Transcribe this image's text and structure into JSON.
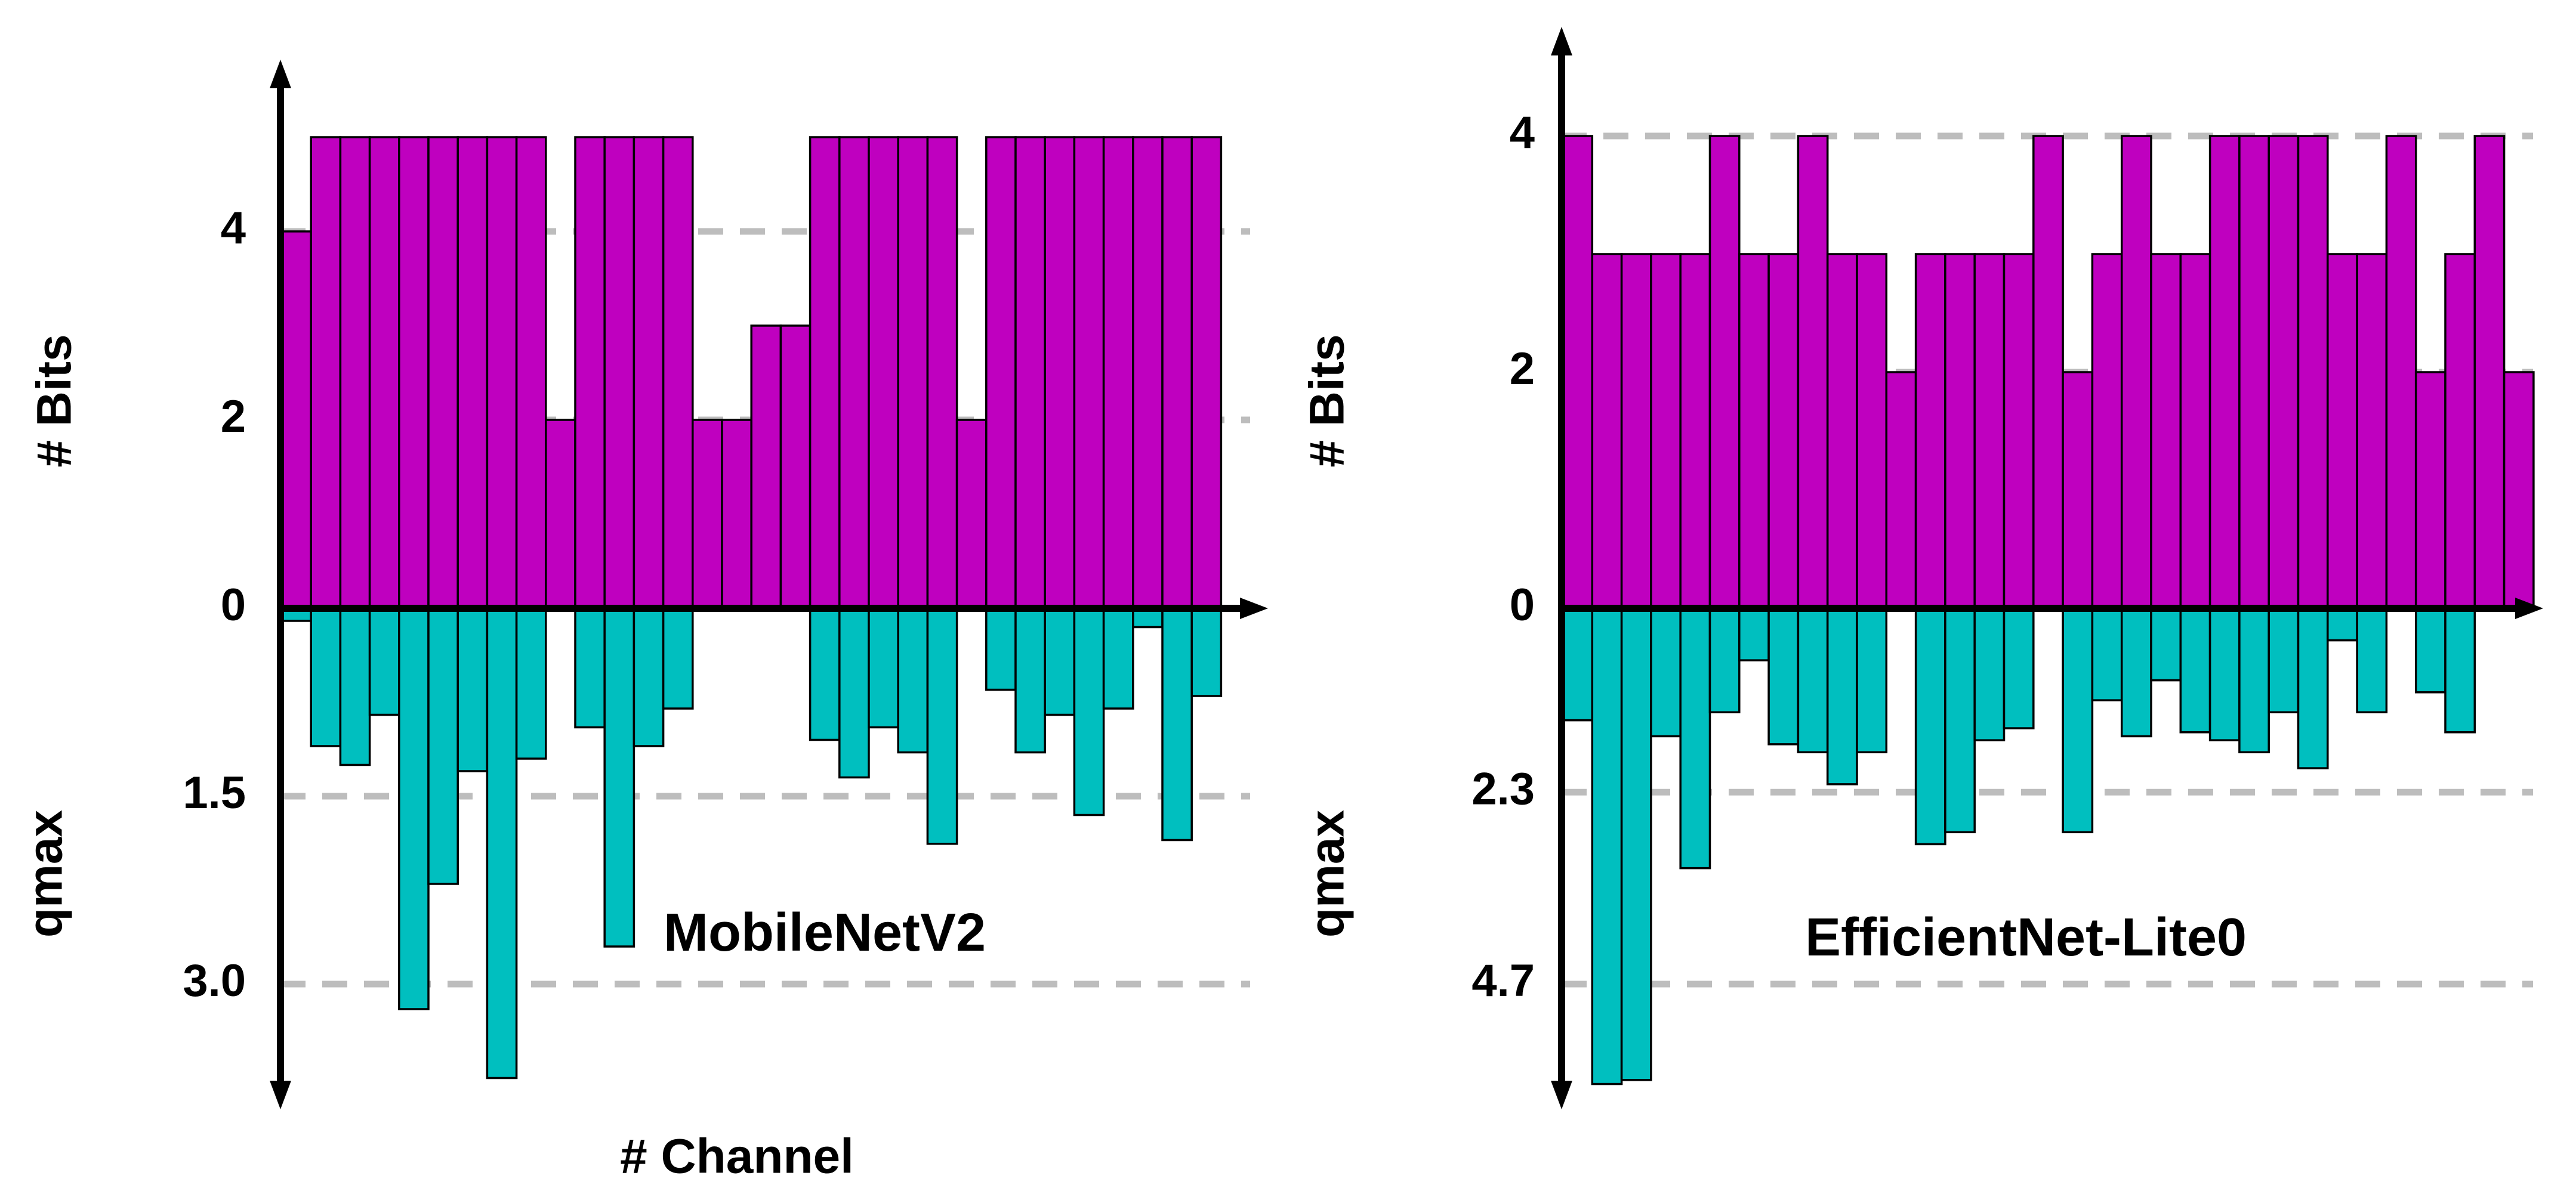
{
  "colors": {
    "bits": "#bf00bf",
    "qmax": "#00bfbf",
    "grid": "#bdbdbd"
  },
  "labels": {
    "left_bits_ylabel": "# Bits",
    "left_qmax_ylabel": "qmax",
    "right_bits_ylabel": "# Bits",
    "right_qmax_ylabel": "qmax",
    "xlabel": "# Channel"
  },
  "chart_data": [
    {
      "type": "bar",
      "annotation": "MobileNetV2",
      "xlabel": "# Channel",
      "bits_axis": {
        "label": "# Bits",
        "ticks": [
          "0",
          "2",
          "4"
        ],
        "tick_values": [
          0,
          2,
          4
        ],
        "ylim": [
          0,
          5.2
        ]
      },
      "qmax_axis": {
        "label": "qmax",
        "ticks": [
          "1.5",
          "3.0"
        ],
        "tick_values": [
          1.5,
          3.0
        ],
        "ylim": [
          0,
          3.85
        ]
      },
      "grid": true,
      "bits": [
        4,
        5,
        5,
        5,
        5,
        5,
        5,
        5,
        5,
        2,
        5,
        5,
        5,
        5,
        2,
        2,
        3,
        3,
        5,
        5,
        5,
        5,
        5,
        2,
        5,
        5,
        5,
        5,
        5,
        5,
        5,
        5
      ],
      "qmax": [
        0.1,
        1.1,
        1.25,
        0.85,
        3.2,
        2.2,
        1.3,
        3.75,
        1.2,
        0,
        0.95,
        2.7,
        1.1,
        0.8,
        0,
        0.02,
        0,
        0,
        1.05,
        1.35,
        0.95,
        1.15,
        1.88,
        0,
        0.65,
        1.15,
        0.85,
        1.65,
        0.8,
        0.15,
        1.85,
        0.7
      ]
    },
    {
      "type": "bar",
      "annotation": "EfficientNet-Lite0",
      "bits_axis": {
        "label": "# Bits",
        "ticks": [
          "0",
          "2",
          "4"
        ],
        "tick_values": [
          0,
          2,
          4
        ],
        "ylim": [
          0,
          4.1
        ]
      },
      "qmax_axis": {
        "label": "qmax",
        "ticks": [
          "2.3",
          "4.7"
        ],
        "tick_values": [
          2.3,
          4.7
        ],
        "ylim": [
          0,
          5.9
        ]
      },
      "grid": true,
      "bits": [
        4,
        3,
        3,
        3,
        3,
        4,
        3,
        3,
        4,
        3,
        3,
        2,
        3,
        3,
        3,
        3,
        4,
        2,
        3,
        4,
        3,
        3,
        4,
        4,
        4,
        4,
        3,
        3,
        4,
        2,
        3,
        4,
        2
      ],
      "qmax": [
        1.4,
        5.95,
        5.9,
        1.6,
        3.25,
        1.3,
        0.65,
        1.7,
        1.8,
        2.2,
        1.8,
        0,
        2.95,
        2.8,
        1.65,
        1.5,
        0,
        2.8,
        1.15,
        1.6,
        0.9,
        1.55,
        1.65,
        1.8,
        1.3,
        2.0,
        0.4,
        1.3,
        0,
        1.05,
        1.55,
        0,
        0
      ]
    }
  ]
}
